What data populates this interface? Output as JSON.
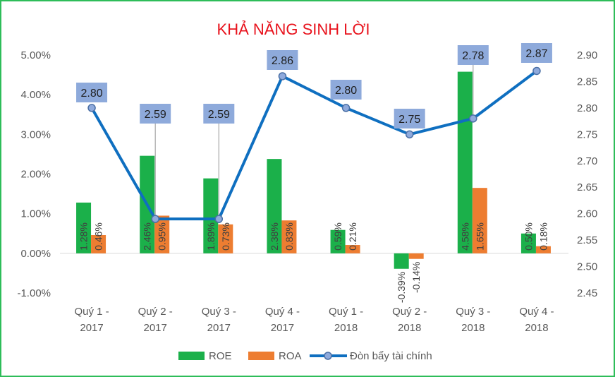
{
  "chart_data": {
    "type": "bar",
    "title": "KHẢ NĂNG SINH LỜI",
    "categories": [
      [
        "Quý 1 -",
        "2017"
      ],
      [
        "Quý 2 -",
        "2017"
      ],
      [
        "Quý 3 -",
        "2017"
      ],
      [
        "Quý 4 -",
        "2017"
      ],
      [
        "Quý 1 -",
        "2018"
      ],
      [
        "Quý 2 -",
        "2018"
      ],
      [
        "Quý 3 -",
        "2018"
      ],
      [
        "Quý 4 -",
        "2018"
      ]
    ],
    "series": [
      {
        "name": "ROE",
        "axis": "left",
        "color": "#1bb04a",
        "values": [
          1.28,
          2.46,
          1.89,
          2.38,
          0.59,
          -0.39,
          4.58,
          0.5
        ],
        "labels": [
          "1.28%",
          "2.46%",
          "1.89%",
          "2.38%",
          "0.59%",
          "-0.39%",
          "4.58%",
          "0.50%"
        ]
      },
      {
        "name": "ROA",
        "axis": "left",
        "color": "#ed7d31",
        "values": [
          0.46,
          0.95,
          0.73,
          0.83,
          0.21,
          -0.14,
          1.65,
          0.18
        ],
        "labels": [
          "0.46%",
          "0.95%",
          "0.73%",
          "0.83%",
          "0.21%",
          "-0.14%",
          "1.65%",
          "0.18%"
        ]
      },
      {
        "name": "Đòn bẩy tài chính",
        "axis": "right",
        "type": "line",
        "color": "#0f6fc0",
        "marker_color": "#8faadc",
        "values": [
          2.8,
          2.59,
          2.59,
          2.86,
          2.8,
          2.75,
          2.78,
          2.87
        ],
        "labels": [
          "2.80",
          "2.59",
          "2.59",
          "2.86",
          "2.80",
          "2.75",
          "2.78",
          "2.87"
        ]
      }
    ],
    "y_left": {
      "min": -1,
      "max": 5,
      "step": 1,
      "ticks": [
        "-1.00%",
        "0.00%",
        "1.00%",
        "2.00%",
        "3.00%",
        "4.00%",
        "5.00%"
      ]
    },
    "y_right": {
      "min": 2.45,
      "max": 2.9,
      "step": 0.05,
      "ticks": [
        "2.45",
        "2.50",
        "2.55",
        "2.60",
        "2.65",
        "2.70",
        "2.75",
        "2.80",
        "2.85",
        "2.90"
      ]
    },
    "grid": false,
    "legend": "bottom",
    "label_box_color": "#8eaadb"
  }
}
